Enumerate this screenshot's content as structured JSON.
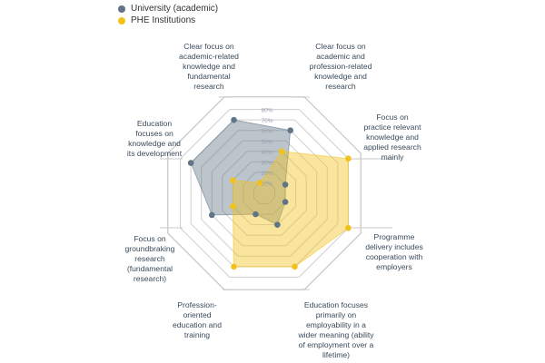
{
  "chart_data": {
    "type": "radar",
    "title": "",
    "categories": [
      "Clear focus on\nacademic-related\nknowledge and\nfundamental\nresearch",
      "Clear focus on\nacademic and\nprofession-related\nknowledge and\nresearch",
      "Focus on\npractice relevant\nknowledge and\napplied research\nmainly",
      "Programme\ndelivery includes\ncooperation with\nemployers",
      "Education focuses\nprimarily on\nemployability in a\nwider meaning (ability\nof employment over a\nlifetime)",
      "Profession-\noriented\neducation and\ntraining",
      "Focus on\ngroundbraking\nresearch\n(fundamental\nresearch)",
      "Education\nfocuses on\nknowledge and\nits development"
    ],
    "axis_ticks": [
      "10%",
      "20%",
      "30%",
      "40%",
      "50%",
      "60%",
      "70%",
      "80%"
    ],
    "rlim": [
      0,
      80
    ],
    "series": [
      {
        "name": "University (academic)",
        "color": "#5f7486",
        "values": [
          70,
          60,
          20,
          20,
          30,
          20,
          50,
          70
        ]
      },
      {
        "name": "PHE Institutions",
        "color": "#f2c21b",
        "values": [
          10,
          40,
          80,
          80,
          70,
          70,
          30,
          30
        ]
      }
    ],
    "grid": true,
    "legend_position": "top-left"
  }
}
